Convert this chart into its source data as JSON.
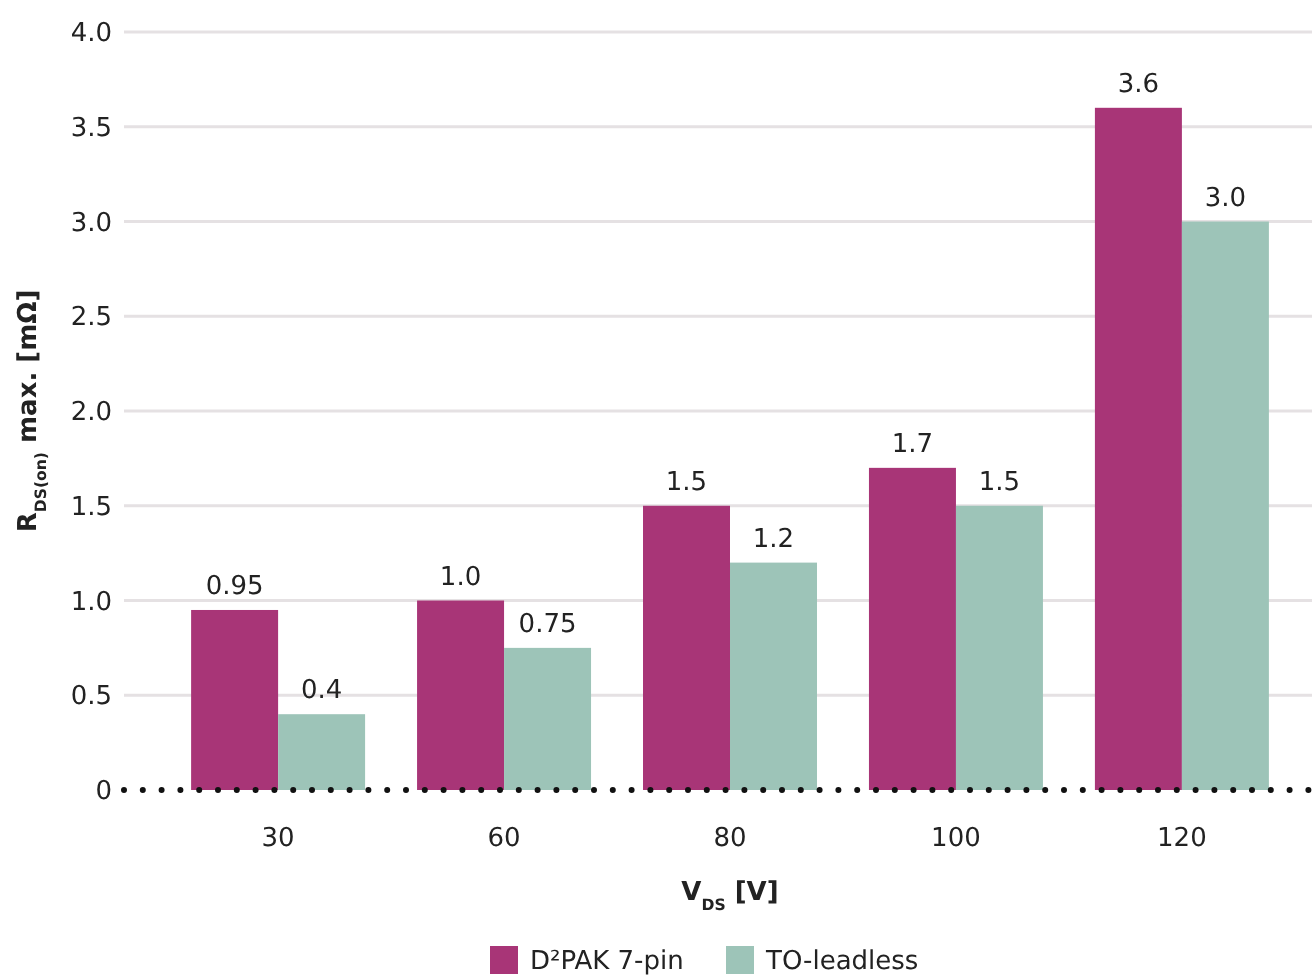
{
  "chart_data": {
    "type": "bar",
    "xlabel": "V$_{DS}$ [V]",
    "ylabel": "R$_{DS(on)}$ max. [mΩ]",
    "categories": [
      "30",
      "60",
      "80",
      "100",
      "120"
    ],
    "series": [
      {
        "name": "D²PAK 7-pin",
        "color": "#a83577",
        "values": [
          0.95,
          1.0,
          1.5,
          1.7,
          3.6
        ],
        "value_labels": [
          "0.95",
          "1.0",
          "1.5",
          "1.7",
          "3.6"
        ]
      },
      {
        "name": "TO-leadless",
        "color": "#9dc4b8",
        "values": [
          0.4,
          0.75,
          1.2,
          1.5,
          3.0
        ],
        "value_labels": [
          "0.4",
          "0.75",
          "1.2",
          "1.5",
          "3.0"
        ]
      }
    ],
    "ylim": [
      0,
      4
    ],
    "yticks": [
      {
        "value": 0,
        "label": "0"
      },
      0.5,
      {
        "value": 1,
        "label": "1.0"
      },
      1.5,
      {
        "value": 2,
        "label": "2.0"
      },
      2.5,
      {
        "value": 3,
        "label": "3.0"
      },
      3.5,
      {
        "value": 4,
        "label": "4.0"
      }
    ],
    "grid": "y",
    "legend": "bottom"
  }
}
